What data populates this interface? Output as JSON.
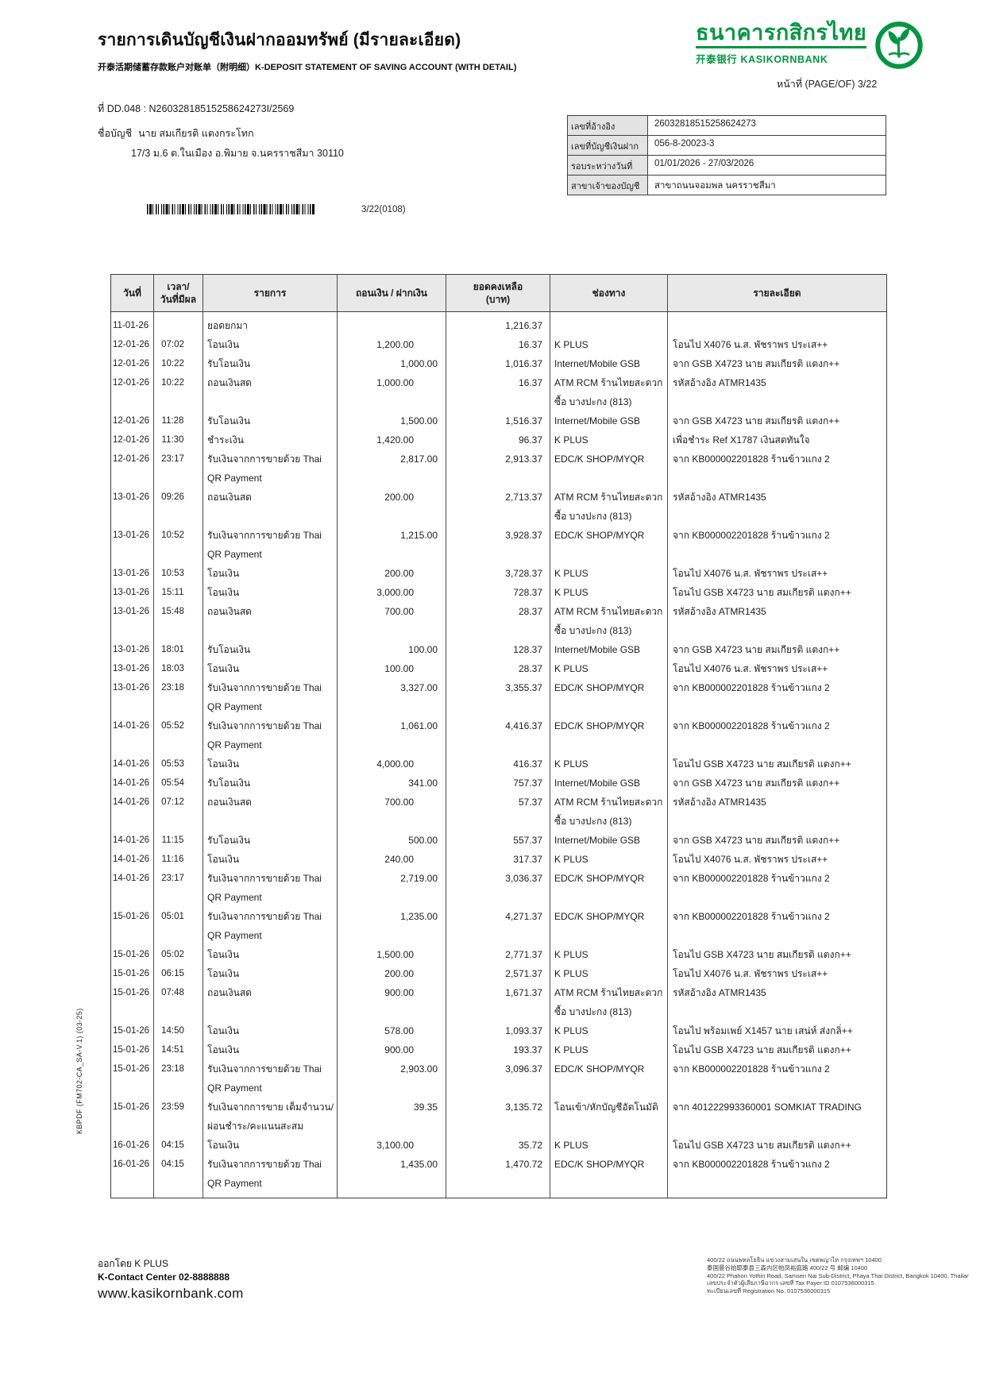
{
  "colors": {
    "brand_green": "#009641"
  },
  "header": {
    "title_th": "รายการเดินบัญชีเงินฝากออมทรัพย์ (มีรายละเอียด)",
    "subtitle": "开泰活期储蓄存款账户对账单（附明细）K-DEPOSIT STATEMENT OF SAVING ACCOUNT (WITH DETAIL)",
    "bank_name_th": "ธนาคารกสิกรไทย",
    "bank_name_sub": "开泰银行 KASIKORNBANK",
    "page_label": "หน้าที่ (PAGE/OF) 3/22",
    "doc_no": "ที่ DD.048 : N26032818515258624273I/2569",
    "account_name_label": "ชื่อบัญชี",
    "account_name": "นาย สมเกียรติ แตงกระโทก",
    "account_address": "17/3 ม.6 ต.ในเมือง อ.พิมาย จ.นครราชสีมา 30110"
  },
  "info_box": {
    "rows": [
      {
        "label": "เลขที่อ้างอิง",
        "value": "26032818515258624273"
      },
      {
        "label": "เลขที่บัญชีเงินฝาก",
        "value": "056-8-20023-3"
      },
      {
        "label": "รอบระหว่างวันที่",
        "value": "01/01/2026 - 27/03/2026"
      },
      {
        "label": "สาขาเจ้าของบัญชี",
        "value": "สาขาถนนจอมพล นครราชสีมา"
      }
    ]
  },
  "barcode_label": "3/22(0108)",
  "table": {
    "headers": [
      {
        "lines": [
          "วันที่"
        ]
      },
      {
        "lines": [
          "เวลา/",
          "วันที่มีผล"
        ]
      },
      {
        "lines": [
          "รายการ"
        ]
      },
      {
        "lines": [
          "ถอนเงิน / ฝากเงิน"
        ]
      },
      {
        "lines": [
          "ยอดคงเหลือ",
          "(บาท)"
        ]
      },
      {
        "lines": [
          "ช่องทาง"
        ]
      },
      {
        "lines": [
          "รายละเอียด"
        ]
      }
    ],
    "rows": [
      {
        "date": "11-01-26",
        "time": "",
        "desc": [
          "ยอดยกมา"
        ],
        "amount": "",
        "type": "",
        "balance": "1,216.37",
        "channel": [],
        "detail": []
      },
      {
        "date": "12-01-26",
        "time": "07:02",
        "desc": [
          "โอนเงิน"
        ],
        "amount": "1,200.00",
        "type": "w",
        "balance": "16.37",
        "channel": [
          "K PLUS"
        ],
        "detail": [
          "โอนไป X4076 น.ส. พัชราพร ประเส++"
        ]
      },
      {
        "date": "12-01-26",
        "time": "10:22",
        "desc": [
          "รับโอนเงิน"
        ],
        "amount": "1,000.00",
        "type": "d",
        "balance": "1,016.37",
        "channel": [
          "Internet/Mobile GSB"
        ],
        "detail": [
          "จาก GSB X4723 นาย สมเกียรติ แตงก++"
        ]
      },
      {
        "date": "12-01-26",
        "time": "10:22",
        "desc": [
          "ถอนเงินสด"
        ],
        "amount": "1,000.00",
        "type": "w",
        "balance": "16.37",
        "channel": [
          "ATM RCM ร้านไทยสะดวก",
          "ซื้อ บางปะกง (813)"
        ],
        "detail": [
          "รหัสอ้างอิง ATMR1435"
        ]
      },
      {
        "date": "12-01-26",
        "time": "11:28",
        "desc": [
          "รับโอนเงิน"
        ],
        "amount": "1,500.00",
        "type": "d",
        "balance": "1,516.37",
        "channel": [
          "Internet/Mobile GSB"
        ],
        "detail": [
          "จาก GSB X4723 นาย สมเกียรติ แตงก++"
        ]
      },
      {
        "date": "12-01-26",
        "time": "11:30",
        "desc": [
          "ชำระเงิน"
        ],
        "amount": "1,420.00",
        "type": "w",
        "balance": "96.37",
        "channel": [
          "K PLUS"
        ],
        "detail": [
          "เพื่อชำระ Ref X1787 เงินสดทันใจ"
        ]
      },
      {
        "date": "12-01-26",
        "time": "23:17",
        "desc": [
          "รับเงินจากการขายด้วย Thai",
          "QR Payment"
        ],
        "amount": "2,817.00",
        "type": "d",
        "balance": "2,913.37",
        "channel": [
          "EDC/K SHOP/MYQR"
        ],
        "detail": [
          "จาก KB000002201828 ร้านข้าวแกง 2"
        ]
      },
      {
        "date": "13-01-26",
        "time": "09:26",
        "desc": [
          "ถอนเงินสด"
        ],
        "amount": "200.00",
        "type": "w",
        "balance": "2,713.37",
        "channel": [
          "ATM RCM ร้านไทยสะดวก",
          "ซื้อ บางปะกง (813)"
        ],
        "detail": [
          "รหัสอ้างอิง ATMR1435"
        ]
      },
      {
        "date": "13-01-26",
        "time": "10:52",
        "desc": [
          "รับเงินจากการขายด้วย Thai",
          "QR Payment"
        ],
        "amount": "1,215.00",
        "type": "d",
        "balance": "3,928.37",
        "channel": [
          "EDC/K SHOP/MYQR"
        ],
        "detail": [
          "จาก KB000002201828 ร้านข้าวแกง 2"
        ]
      },
      {
        "date": "13-01-26",
        "time": "10:53",
        "desc": [
          "โอนเงิน"
        ],
        "amount": "200.00",
        "type": "w",
        "balance": "3,728.37",
        "channel": [
          "K PLUS"
        ],
        "detail": [
          "โอนไป X4076 น.ส. พัชราพร ประเส++"
        ]
      },
      {
        "date": "13-01-26",
        "time": "15:11",
        "desc": [
          "โอนเงิน"
        ],
        "amount": "3,000.00",
        "type": "w",
        "balance": "728.37",
        "channel": [
          "K PLUS"
        ],
        "detail": [
          "โอนไป GSB X4723 นาย สมเกียรติ แตงก++"
        ]
      },
      {
        "date": "13-01-26",
        "time": "15:48",
        "desc": [
          "ถอนเงินสด"
        ],
        "amount": "700.00",
        "type": "w",
        "balance": "28.37",
        "channel": [
          "ATM RCM ร้านไทยสะดวก",
          "ซื้อ บางปะกง (813)"
        ],
        "detail": [
          "รหัสอ้างอิง ATMR1435"
        ]
      },
      {
        "date": "13-01-26",
        "time": "18:01",
        "desc": [
          "รับโอนเงิน"
        ],
        "amount": "100.00",
        "type": "d",
        "balance": "128.37",
        "channel": [
          "Internet/Mobile GSB"
        ],
        "detail": [
          "จาก GSB X4723 นาย สมเกียรติ แตงก++"
        ]
      },
      {
        "date": "13-01-26",
        "time": "18:03",
        "desc": [
          "โอนเงิน"
        ],
        "amount": "100.00",
        "type": "w",
        "balance": "28.37",
        "channel": [
          "K PLUS"
        ],
        "detail": [
          "โอนไป X4076 น.ส. พัชราพร ประเส++"
        ]
      },
      {
        "date": "13-01-26",
        "time": "23:18",
        "desc": [
          "รับเงินจากการขายด้วย Thai",
          "QR Payment"
        ],
        "amount": "3,327.00",
        "type": "d",
        "balance": "3,355.37",
        "channel": [
          "EDC/K SHOP/MYQR"
        ],
        "detail": [
          "จาก KB000002201828 ร้านข้าวแกง 2"
        ]
      },
      {
        "date": "14-01-26",
        "time": "05:52",
        "desc": [
          "รับเงินจากการขายด้วย Thai",
          "QR Payment"
        ],
        "amount": "1,061.00",
        "type": "d",
        "balance": "4,416.37",
        "channel": [
          "EDC/K SHOP/MYQR"
        ],
        "detail": [
          "จาก KB000002201828 ร้านข้าวแกง 2"
        ]
      },
      {
        "date": "14-01-26",
        "time": "05:53",
        "desc": [
          "โอนเงิน"
        ],
        "amount": "4,000.00",
        "type": "w",
        "balance": "416.37",
        "channel": [
          "K PLUS"
        ],
        "detail": [
          "โอนไป GSB X4723 นาย สมเกียรติ แตงก++"
        ]
      },
      {
        "date": "14-01-26",
        "time": "05:54",
        "desc": [
          "รับโอนเงิน"
        ],
        "amount": "341.00",
        "type": "d",
        "balance": "757.37",
        "channel": [
          "Internet/Mobile GSB"
        ],
        "detail": [
          "จาก GSB X4723 นาย สมเกียรติ แตงก++"
        ]
      },
      {
        "date": "14-01-26",
        "time": "07:12",
        "desc": [
          "ถอนเงินสด"
        ],
        "amount": "700.00",
        "type": "w",
        "balance": "57.37",
        "channel": [
          "ATM RCM ร้านไทยสะดวก",
          "ซื้อ บางปะกง (813)"
        ],
        "detail": [
          "รหัสอ้างอิง ATMR1435"
        ]
      },
      {
        "date": "14-01-26",
        "time": "11:15",
        "desc": [
          "รับโอนเงิน"
        ],
        "amount": "500.00",
        "type": "d",
        "balance": "557.37",
        "channel": [
          "Internet/Mobile GSB"
        ],
        "detail": [
          "จาก GSB X4723 นาย สมเกียรติ แตงก++"
        ]
      },
      {
        "date": "14-01-26",
        "time": "11:16",
        "desc": [
          "โอนเงิน"
        ],
        "amount": "240.00",
        "type": "w",
        "balance": "317.37",
        "channel": [
          "K PLUS"
        ],
        "detail": [
          "โอนไป X4076 น.ส. พัชราพร ประเส++"
        ]
      },
      {
        "date": "14-01-26",
        "time": "23:17",
        "desc": [
          "รับเงินจากการขายด้วย Thai",
          "QR Payment"
        ],
        "amount": "2,719.00",
        "type": "d",
        "balance": "3,036.37",
        "channel": [
          "EDC/K SHOP/MYQR"
        ],
        "detail": [
          "จาก KB000002201828 ร้านข้าวแกง 2"
        ]
      },
      {
        "date": "15-01-26",
        "time": "05:01",
        "desc": [
          "รับเงินจากการขายด้วย Thai",
          "QR Payment"
        ],
        "amount": "1,235.00",
        "type": "d",
        "balance": "4,271.37",
        "channel": [
          "EDC/K SHOP/MYQR"
        ],
        "detail": [
          "จาก KB000002201828 ร้านข้าวแกง 2"
        ]
      },
      {
        "date": "15-01-26",
        "time": "05:02",
        "desc": [
          "โอนเงิน"
        ],
        "amount": "1,500.00",
        "type": "w",
        "balance": "2,771.37",
        "channel": [
          "K PLUS"
        ],
        "detail": [
          "โอนไป GSB X4723 นาย สมเกียรติ แตงก++"
        ]
      },
      {
        "date": "15-01-26",
        "time": "06:15",
        "desc": [
          "โอนเงิน"
        ],
        "amount": "200.00",
        "type": "w",
        "balance": "2,571.37",
        "channel": [
          "K PLUS"
        ],
        "detail": [
          "โอนไป X4076 น.ส. พัชราพร ประเส++"
        ]
      },
      {
        "date": "15-01-26",
        "time": "07:48",
        "desc": [
          "ถอนเงินสด"
        ],
        "amount": "900.00",
        "type": "w",
        "balance": "1,671.37",
        "channel": [
          "ATM RCM ร้านไทยสะดวก",
          "ซื้อ บางปะกง (813)"
        ],
        "detail": [
          "รหัสอ้างอิง ATMR1435"
        ]
      },
      {
        "date": "15-01-26",
        "time": "14:50",
        "desc": [
          "โอนเงิน"
        ],
        "amount": "578.00",
        "type": "w",
        "balance": "1,093.37",
        "channel": [
          "K PLUS"
        ],
        "detail": [
          "โอนไป พร้อมเพย์ X1457 นาย เสน่ห์ ส่งกลิ่++"
        ]
      },
      {
        "date": "15-01-26",
        "time": "14:51",
        "desc": [
          "โอนเงิน"
        ],
        "amount": "900.00",
        "type": "w",
        "balance": "193.37",
        "channel": [
          "K PLUS"
        ],
        "detail": [
          "โอนไป GSB X4723 นาย สมเกียรติ แตงก++"
        ]
      },
      {
        "date": "15-01-26",
        "time": "23:18",
        "desc": [
          "รับเงินจากการขายด้วย Thai",
          "QR Payment"
        ],
        "amount": "2,903.00",
        "type": "d",
        "balance": "3,096.37",
        "channel": [
          "EDC/K SHOP/MYQR"
        ],
        "detail": [
          "จาก KB000002201828 ร้านข้าวแกง 2"
        ]
      },
      {
        "date": "15-01-26",
        "time": "23:59",
        "desc": [
          "รับเงินจากการขาย เต็มจำนวน/",
          "ผ่อนชำระ/คะแนนสะสม"
        ],
        "amount": "39.35",
        "type": "d",
        "balance": "3,135.72",
        "channel": [
          "โอนเข้า/หักบัญชีอัตโนมัติ"
        ],
        "detail": [
          "จาก 401222993360001 SOMKIAT TRADING"
        ]
      },
      {
        "date": "16-01-26",
        "time": "04:15",
        "desc": [
          "โอนเงิน"
        ],
        "amount": "3,100.00",
        "type": "w",
        "balance": "35.72",
        "channel": [
          "K PLUS"
        ],
        "detail": [
          "โอนไป GSB X4723 นาย สมเกียรติ แตงก++"
        ]
      },
      {
        "date": "16-01-26",
        "time": "04:15",
        "desc": [
          "รับเงินจากการขายด้วย Thai",
          "QR Payment"
        ],
        "amount": "1,435.00",
        "type": "d",
        "balance": "1,470.72",
        "channel": [
          "EDC/K SHOP/MYQR"
        ],
        "detail": [
          "จาก KB000002201828 ร้านข้าวแกง 2"
        ]
      }
    ]
  },
  "side_note": "KBPDF (FM702-CA_SA-V.1) (03-25)",
  "footer": {
    "issued_by": "ออกโดย K PLUS",
    "contact": "K-Contact Center 02-8888888",
    "website": "www.kasikornbank.com",
    "small_print": [
      "400/22 ถนนพหลโยธิน แขวงสามเสนใน เขตพญาไท กรุงเทพฯ 10400",
      "泰国曼谷拍耶泰县三森内区帕凤裕庭路 400/22 号 邮编 10400",
      "400/22 Phahon Yothin Road, Samsen Nai Sub-District, Phaya Thai District, Bangkok 10400, Thailand.",
      "เลขประจำตัวผู้เสียภาษีอากร เลขที่ Tax Payer ID 0107536000315",
      "ทะเบียนเลขที่ Registration No. 0107536000315"
    ]
  }
}
